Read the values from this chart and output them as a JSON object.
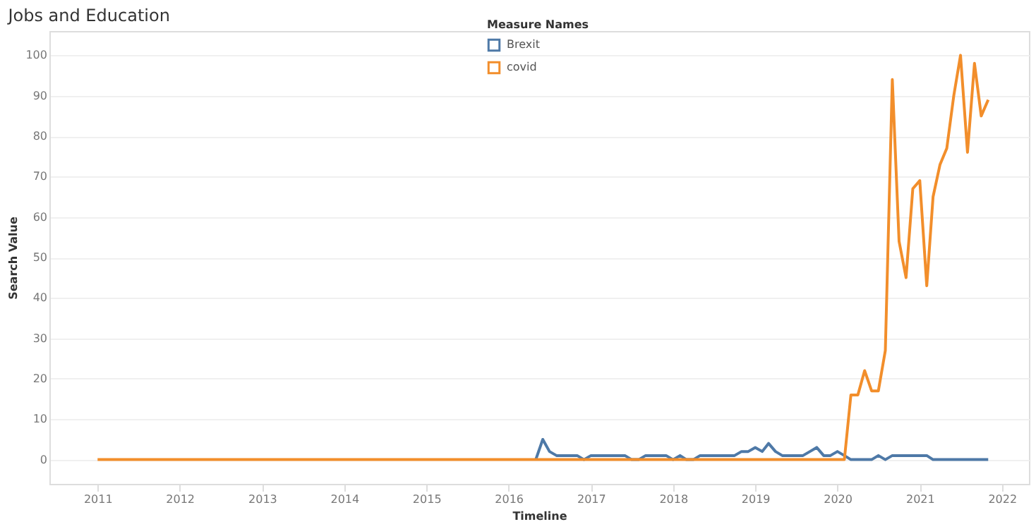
{
  "chart_data": {
    "type": "line",
    "title": "Jobs and Education",
    "xlabel": "Timeline",
    "ylabel": "Search Value",
    "legend_title": "Measure Names",
    "legend": "top",
    "grid": "y",
    "xlim": [
      "2010-06",
      "2022-05"
    ],
    "xticks": [
      "2011",
      "2012",
      "2013",
      "2014",
      "2015",
      "2016",
      "2017",
      "2018",
      "2019",
      "2020",
      "2021",
      "2022"
    ],
    "ylim": [
      -6,
      106
    ],
    "yticks": [
      0,
      10,
      20,
      30,
      40,
      50,
      60,
      70,
      80,
      90,
      100
    ],
    "line_style": "solid",
    "marker": "none",
    "series": [
      {
        "name": "Brexit",
        "color": "#4e79a7",
        "x": [
          "2016-05",
          "2016-06",
          "2016-07",
          "2016-08",
          "2016-09",
          "2016-10",
          "2016-11",
          "2016-12",
          "2017-01",
          "2017-02",
          "2017-03",
          "2017-04",
          "2017-05",
          "2017-06",
          "2017-07",
          "2017-08",
          "2017-09",
          "2017-10",
          "2017-11",
          "2017-12",
          "2018-01",
          "2018-02",
          "2018-03",
          "2018-04",
          "2018-05",
          "2018-06",
          "2018-07",
          "2018-08",
          "2018-09",
          "2018-10",
          "2018-11",
          "2018-12",
          "2019-01",
          "2019-02",
          "2019-03",
          "2019-04",
          "2019-05",
          "2019-06",
          "2019-07",
          "2019-08",
          "2019-09",
          "2019-10",
          "2019-11",
          "2019-12",
          "2020-01",
          "2020-02",
          "2020-03",
          "2020-04",
          "2020-05",
          "2020-06",
          "2020-07",
          "2020-08",
          "2020-09",
          "2020-10",
          "2020-11",
          "2020-12",
          "2021-01",
          "2021-02",
          "2021-03",
          "2021-04",
          "2021-05",
          "2021-06",
          "2021-07",
          "2021-08",
          "2021-09",
          "2021-10",
          "2021-11"
        ],
        "values": [
          0,
          5,
          2,
          1,
          1,
          1,
          1,
          0,
          1,
          1,
          1,
          1,
          1,
          1,
          0,
          0,
          1,
          1,
          1,
          1,
          0,
          1,
          0,
          0,
          1,
          1,
          1,
          1,
          1,
          1,
          2,
          2,
          3,
          2,
          4,
          2,
          1,
          1,
          1,
          1,
          2,
          3,
          1,
          1,
          2,
          1,
          0,
          0,
          0,
          0,
          1,
          0,
          1,
          1,
          1,
          1,
          1,
          1,
          0,
          0,
          0,
          0,
          0,
          0,
          0,
          0,
          0
        ]
      },
      {
        "name": "covid",
        "color": "#f28e2b",
        "x": [
          "2011-01",
          "2020-02",
          "2020-03",
          "2020-04",
          "2020-05",
          "2020-06",
          "2020-07",
          "2020-08",
          "2020-09",
          "2020-10",
          "2020-11",
          "2020-12",
          "2021-01",
          "2021-02",
          "2021-03",
          "2021-04",
          "2021-05",
          "2021-06",
          "2021-07",
          "2021-08",
          "2021-09",
          "2021-10",
          "2021-11"
        ],
        "values": [
          0,
          0,
          16,
          16,
          22,
          17,
          17,
          27,
          94,
          54,
          45,
          67,
          69,
          43,
          65,
          73,
          77,
          90,
          100,
          76,
          98,
          85,
          89
        ]
      }
    ]
  }
}
